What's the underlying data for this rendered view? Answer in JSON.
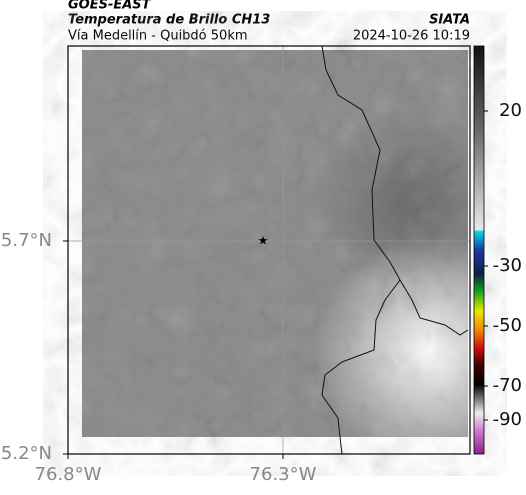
{
  "header": {
    "title": "GOES-EAST",
    "subtitle": "Temperatura de Brillo CH13",
    "route": "Vía Medellín - Quibdó 50km",
    "source": "SIATA",
    "timestamp": "2024-10-26 10:19"
  },
  "map": {
    "lat_labels": [
      "5.7°N",
      "5.2°N"
    ],
    "lon_labels": [
      "76.8°W",
      "76.3°W"
    ]
  },
  "colorbar": {
    "ticks": [
      20,
      -30,
      -50,
      -70,
      -90
    ]
  }
}
